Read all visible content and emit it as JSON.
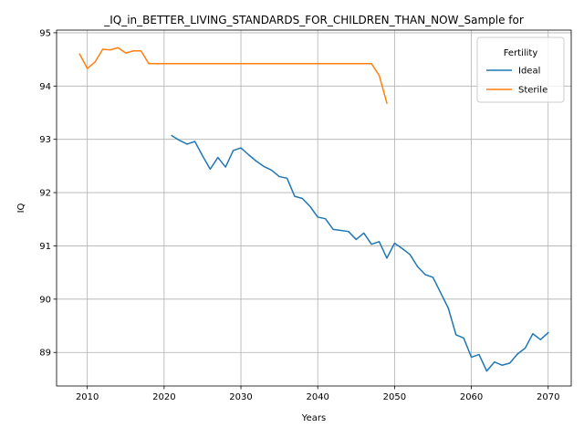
{
  "chart_data": {
    "type": "line",
    "title": "_IQ_in_BETTER_LIVING_STANDARDS_FOR_CHILDREN_THAN_NOW_Sample for",
    "xlabel": "Years",
    "ylabel": "IQ",
    "xlim": [
      2006,
      2073
    ],
    "ylim": [
      88.37,
      95.05
    ],
    "x_ticks": [
      2010,
      2020,
      2030,
      2040,
      2050,
      2060,
      2070
    ],
    "y_ticks": [
      89,
      90,
      91,
      92,
      93,
      94,
      95
    ],
    "grid": true,
    "legend": {
      "title": "Fertility",
      "placement": "top-right"
    },
    "series": [
      {
        "name": "Ideal",
        "color": "#1f77b4",
        "x": [
          2021,
          2022,
          2023,
          2024,
          2025,
          2026,
          2027,
          2028,
          2029,
          2030,
          2031,
          2032,
          2033,
          2034,
          2035,
          2036,
          2037,
          2038,
          2039,
          2040,
          2041,
          2042,
          2043,
          2044,
          2045,
          2046,
          2047,
          2048,
          2049,
          2050,
          2051,
          2052,
          2053,
          2054,
          2055,
          2056,
          2057,
          2058,
          2059,
          2060,
          2061,
          2062,
          2063,
          2064,
          2065,
          2066,
          2067,
          2068,
          2069,
          2070
        ],
        "y": [
          93.07,
          92.98,
          92.91,
          92.96,
          92.69,
          92.44,
          92.66,
          92.48,
          92.79,
          92.84,
          92.71,
          92.59,
          92.49,
          92.42,
          92.3,
          92.27,
          91.93,
          91.89,
          91.74,
          91.54,
          91.51,
          91.31,
          91.29,
          91.27,
          91.12,
          91.24,
          91.03,
          91.08,
          90.77,
          91.05,
          90.95,
          90.84,
          90.61,
          90.46,
          90.41,
          90.12,
          89.83,
          89.33,
          89.27,
          88.91,
          88.96,
          88.65,
          88.82,
          88.76,
          88.8,
          88.97,
          89.08,
          89.35,
          89.24,
          89.37
        ]
      },
      {
        "name": "Sterile",
        "color": "#ff7f0e",
        "x": [
          2009,
          2010,
          2011,
          2012,
          2013,
          2014,
          2015,
          2016,
          2017,
          2018,
          2019,
          2020,
          2021,
          2022,
          2023,
          2024,
          2025,
          2026,
          2027,
          2028,
          2029,
          2030,
          2031,
          2032,
          2033,
          2034,
          2035,
          2036,
          2037,
          2038,
          2039,
          2040,
          2041,
          2042,
          2043,
          2044,
          2045,
          2046,
          2047,
          2048,
          2049
        ],
        "y": [
          94.6,
          94.33,
          94.45,
          94.69,
          94.68,
          94.72,
          94.62,
          94.66,
          94.66,
          94.42,
          94.42,
          94.42,
          94.42,
          94.42,
          94.42,
          94.42,
          94.42,
          94.42,
          94.42,
          94.42,
          94.42,
          94.42,
          94.42,
          94.42,
          94.42,
          94.42,
          94.42,
          94.42,
          94.42,
          94.42,
          94.42,
          94.42,
          94.42,
          94.42,
          94.42,
          94.42,
          94.42,
          94.42,
          94.42,
          94.2,
          93.68
        ]
      }
    ]
  }
}
